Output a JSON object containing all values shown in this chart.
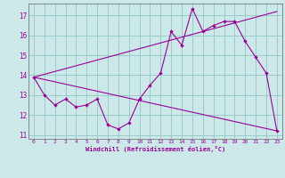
{
  "xlabel": "Windchill (Refroidissement éolien,°C)",
  "xlim": [
    -0.5,
    23.5
  ],
  "ylim": [
    10.8,
    17.6
  ],
  "xticks": [
    0,
    1,
    2,
    3,
    4,
    5,
    6,
    7,
    8,
    9,
    10,
    11,
    12,
    13,
    14,
    15,
    16,
    17,
    18,
    19,
    20,
    21,
    22,
    23
  ],
  "yticks": [
    11,
    12,
    13,
    14,
    15,
    16,
    17
  ],
  "bg_color": "#cce8e8",
  "line_color": "#990099",
  "grid_color": "#99cccc",
  "line_short": {
    "x": [
      0,
      1,
      2,
      3,
      4,
      5,
      6,
      7,
      8,
      9,
      10
    ],
    "y": [
      13.9,
      13.0,
      12.5,
      12.8,
      12.4,
      12.5,
      12.8,
      11.5,
      11.3,
      11.6,
      12.8
    ]
  },
  "line_long": {
    "x": [
      10,
      11,
      12,
      13,
      14,
      15,
      16,
      17,
      18,
      19,
      20,
      21,
      22,
      23
    ],
    "y": [
      12.8,
      13.5,
      14.1,
      16.2,
      15.5,
      17.35,
      16.2,
      16.5,
      16.7,
      16.7,
      15.7,
      14.9,
      14.1,
      11.2
    ]
  },
  "line_upper": {
    "x": [
      0,
      23
    ],
    "y": [
      13.9,
      17.2
    ]
  },
  "line_lower": {
    "x": [
      0,
      23
    ],
    "y": [
      13.9,
      11.2
    ]
  }
}
